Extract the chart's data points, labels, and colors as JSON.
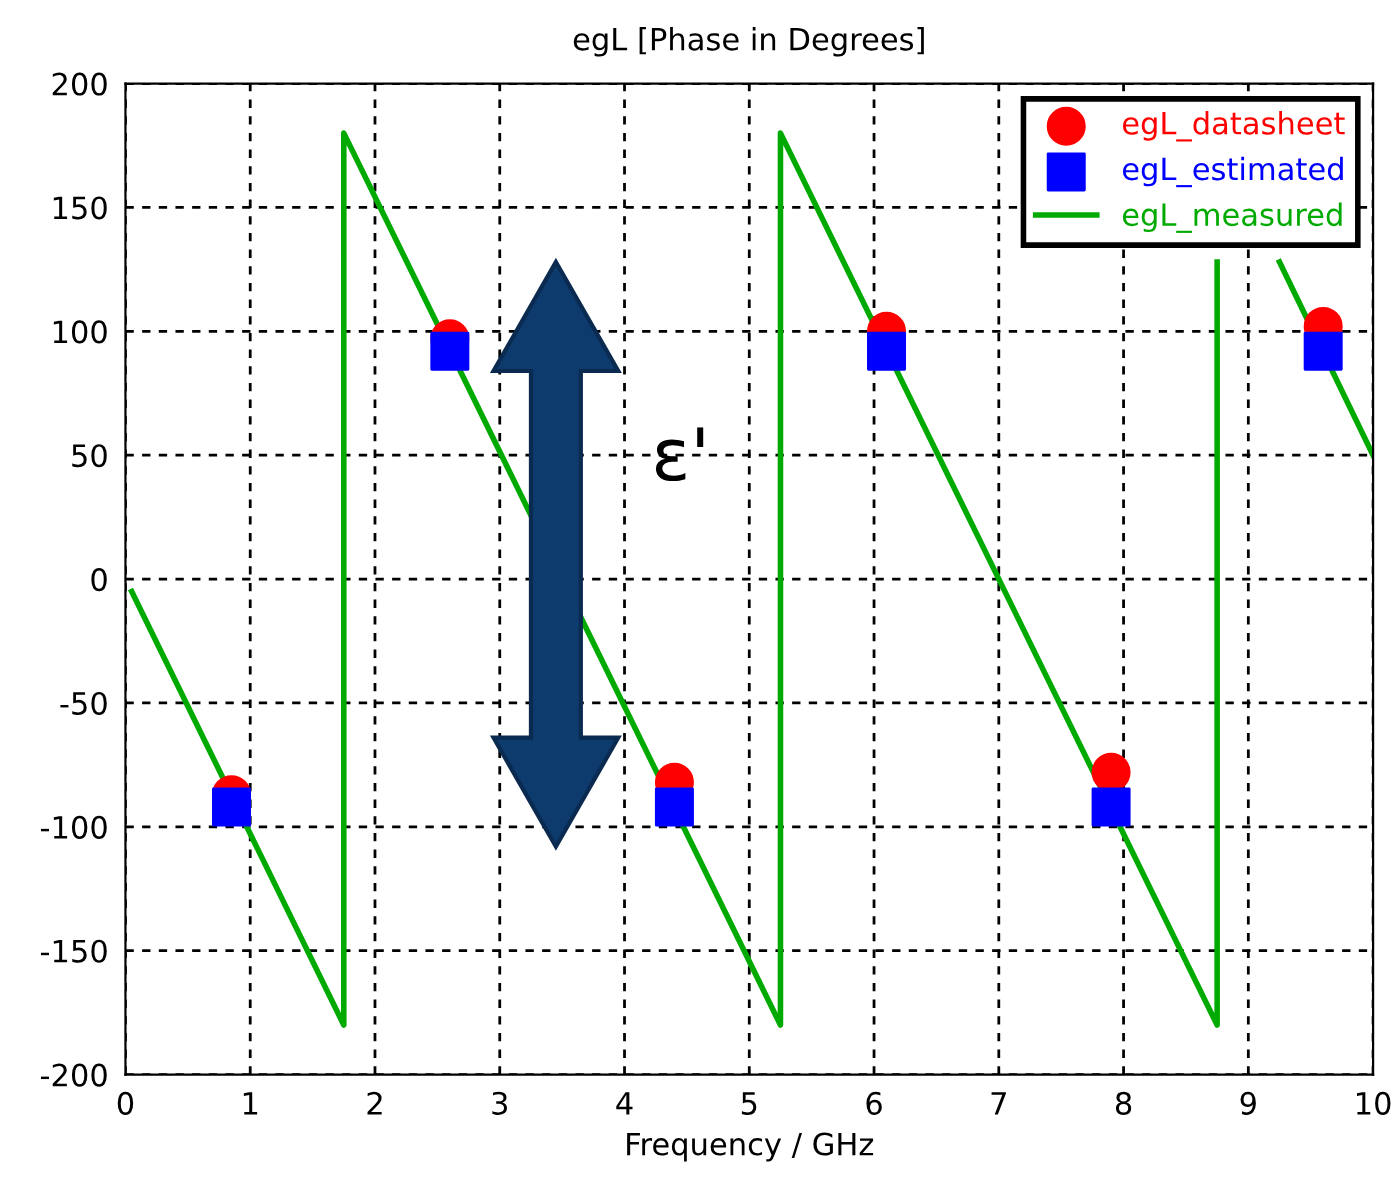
{
  "chart_data": {
    "type": "line",
    "title": "egL [Phase in Degrees]",
    "xlabel": "Frequency / GHz",
    "xlim": [
      0,
      10
    ],
    "xticks": [
      0,
      1,
      2,
      3,
      4,
      5,
      6,
      7,
      8,
      9,
      10
    ],
    "ylim": [
      -200,
      200
    ],
    "yticks": [
      -200,
      -150,
      -100,
      -50,
      0,
      50,
      100,
      150,
      200
    ],
    "grid": true,
    "legend": "top right",
    "annotations": [
      "ε'"
    ],
    "series": [
      {
        "name": "egL_datasheet",
        "type": "scatter",
        "marker": "circle",
        "color": "#ff0000",
        "x": [
          0.85,
          2.6,
          4.4,
          6.1,
          7.9,
          9.6
        ],
        "values": [
          -87,
          97,
          -82,
          100,
          -78,
          102
        ]
      },
      {
        "name": "egL_estimated",
        "type": "scatter",
        "marker": "square",
        "color": "#0000ff",
        "x": [
          0.85,
          2.6,
          4.4,
          6.1,
          7.9,
          9.6
        ],
        "values": [
          -92,
          92,
          -92,
          92,
          -92,
          92
        ]
      },
      {
        "name": "egL_measured",
        "marker": "none",
        "color": "#00aa00",
        "x": [
          0.05,
          1.75,
          1.75,
          5.25,
          5.25,
          8.75,
          8.75,
          9.0,
          9.25,
          10
        ],
        "values": [
          -5,
          -180,
          180,
          -180,
          180,
          -180,
          128,
          null,
          128,
          50
        ]
      }
    ]
  }
}
